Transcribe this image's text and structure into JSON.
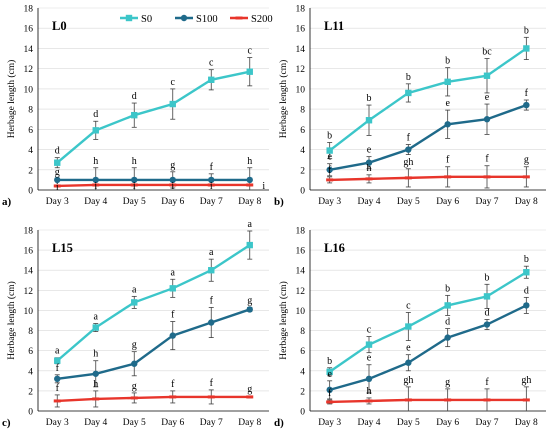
{
  "legend": [
    {
      "name": "S0",
      "color": "#3cc6c9",
      "marker": "square"
    },
    {
      "name": "S100",
      "color": "#1f6a8a",
      "marker": "circle"
    },
    {
      "name": "S200",
      "color": "#e8352b",
      "marker": "dash"
    }
  ],
  "chart_data": [
    {
      "type": "line",
      "panel_letter": "a)",
      "title": "L0",
      "ylabel": "Herbage length (cm)",
      "xlabel": "",
      "categories": [
        "Day 3",
        "Day 4",
        "Day 5",
        "Day 6",
        "Day 7",
        "Day 8"
      ],
      "ylim": [
        0,
        18
      ],
      "yticks": [
        0,
        2,
        4,
        6,
        8,
        10,
        12,
        14,
        16,
        18
      ],
      "grid": "horizontal",
      "series": [
        {
          "name": "S0",
          "values": [
            2.7,
            5.9,
            7.4,
            8.5,
            10.9,
            11.7
          ],
          "errors": [
            0.5,
            0.9,
            1.2,
            1.5,
            1.0,
            1.4
          ],
          "labels": [
            "d",
            "d",
            "d",
            "c",
            "c",
            "c"
          ]
        },
        {
          "name": "S100",
          "values": [
            1.0,
            1.0,
            1.0,
            1.0,
            1.0,
            1.0
          ],
          "errors": [
            0.1,
            1.2,
            1.2,
            0.8,
            0.6,
            1.2
          ],
          "labels": [
            "g",
            "h",
            "h",
            "g",
            "f",
            "h"
          ]
        },
        {
          "name": "S200",
          "values": [
            0.4,
            0.5,
            0.5,
            0.5,
            0.5,
            0.5
          ],
          "errors": [
            0.1,
            0.1,
            0.1,
            0.1,
            0.1,
            0.1
          ],
          "labels": [
            "i",
            "i",
            "i",
            "i",
            "i",
            "i"
          ]
        }
      ]
    },
    {
      "type": "line",
      "panel_letter": "b)",
      "title": "L11",
      "ylabel": "Herbage length (cm)",
      "xlabel": "",
      "categories": [
        "Day 3",
        "Day 4",
        "Day 5",
        "Day 6",
        "Day 7",
        "Day 8"
      ],
      "ylim": [
        0,
        18
      ],
      "yticks": [
        0,
        2,
        4,
        6,
        8,
        10,
        12,
        14,
        16,
        18
      ],
      "grid": "horizontal",
      "series": [
        {
          "name": "S0",
          "values": [
            3.9,
            6.9,
            9.6,
            10.7,
            11.3,
            14.0
          ],
          "errors": [
            0.8,
            1.5,
            0.9,
            1.4,
            1.7,
            1.1
          ],
          "labels": [
            "b",
            "b",
            "b",
            "b",
            "bc",
            "b"
          ]
        },
        {
          "name": "S100",
          "values": [
            2.0,
            2.7,
            4.0,
            6.5,
            7.0,
            8.4
          ],
          "errors": [
            0.6,
            0.6,
            0.5,
            1.4,
            1.5,
            0.5
          ],
          "labels": [
            "e",
            "e",
            "f",
            "e",
            "e",
            "f"
          ]
        },
        {
          "name": "S200",
          "values": [
            1.0,
            1.1,
            1.2,
            1.3,
            1.3,
            1.3
          ],
          "errors": [
            0.3,
            0.4,
            0.9,
            1.0,
            1.1,
            1.0
          ],
          "labels": [
            "f",
            "h",
            "gh",
            "f",
            "f",
            "g"
          ]
        }
      ]
    },
    {
      "type": "line",
      "panel_letter": "c)",
      "title": "L15",
      "ylabel": "Herbage length (cm)",
      "xlabel": "",
      "categories": [
        "Day 3",
        "Day 4",
        "Day 5",
        "Day 6",
        "Day 7",
        "Day 8"
      ],
      "ylim": [
        0,
        18
      ],
      "yticks": [
        0,
        2,
        4,
        6,
        8,
        10,
        12,
        14,
        16,
        18
      ],
      "grid": "horizontal",
      "series": [
        {
          "name": "S0",
          "values": [
            5.0,
            8.3,
            10.8,
            12.2,
            14.0,
            16.5
          ],
          "errors": [
            0.3,
            0.4,
            0.6,
            0.9,
            1.1,
            1.4
          ],
          "labels": [
            "a",
            "a",
            "a",
            "a",
            "a",
            "a"
          ]
        },
        {
          "name": "S100",
          "values": [
            3.2,
            3.7,
            4.7,
            7.5,
            8.8,
            10.1
          ],
          "errors": [
            0.4,
            1.3,
            1.2,
            1.4,
            1.5,
            0.2
          ],
          "labels": [
            "f",
            "h",
            "g",
            "f",
            "f",
            "g"
          ]
        },
        {
          "name": "S200",
          "values": [
            1.0,
            1.2,
            1.3,
            1.4,
            1.4,
            1.4
          ],
          "errors": [
            0.6,
            0.8,
            0.5,
            0.6,
            0.7,
            0.1
          ],
          "labels": [
            "f",
            "h",
            "g",
            "f",
            "f",
            "g"
          ]
        }
      ]
    },
    {
      "type": "line",
      "panel_letter": "d)",
      "title": "L16",
      "ylabel": "Herbage length (cm)",
      "xlabel": "",
      "categories": [
        "Day 3",
        "Day 4",
        "Day 5",
        "Day 6",
        "Day 7",
        "Day 8"
      ],
      "ylim": [
        0,
        18
      ],
      "yticks": [
        0,
        2,
        4,
        6,
        8,
        10,
        12,
        14,
        16,
        18
      ],
      "grid": "horizontal",
      "series": [
        {
          "name": "S0",
          "values": [
            3.9,
            6.6,
            8.4,
            10.5,
            11.4,
            13.8
          ],
          "errors": [
            0.4,
            0.8,
            1.4,
            1.0,
            1.2,
            0.6
          ],
          "labels": [
            "b",
            "c",
            "c",
            "b",
            "b",
            "b"
          ]
        },
        {
          "name": "S100",
          "values": [
            2.1,
            3.2,
            4.8,
            7.3,
            8.6,
            10.5
          ],
          "errors": [
            0.9,
            1.4,
            0.8,
            0.9,
            0.5,
            0.8
          ],
          "labels": [
            "e",
            "e",
            "e",
            "d",
            "d",
            "d"
          ]
        },
        {
          "name": "S200",
          "values": [
            0.9,
            1.0,
            1.1,
            1.1,
            1.1,
            1.1
          ],
          "errors": [
            0.2,
            0.3,
            1.3,
            1.1,
            1.1,
            1.3
          ],
          "labels": [
            "f",
            "h",
            "gh",
            "g",
            "f",
            "gh"
          ]
        }
      ]
    }
  ]
}
